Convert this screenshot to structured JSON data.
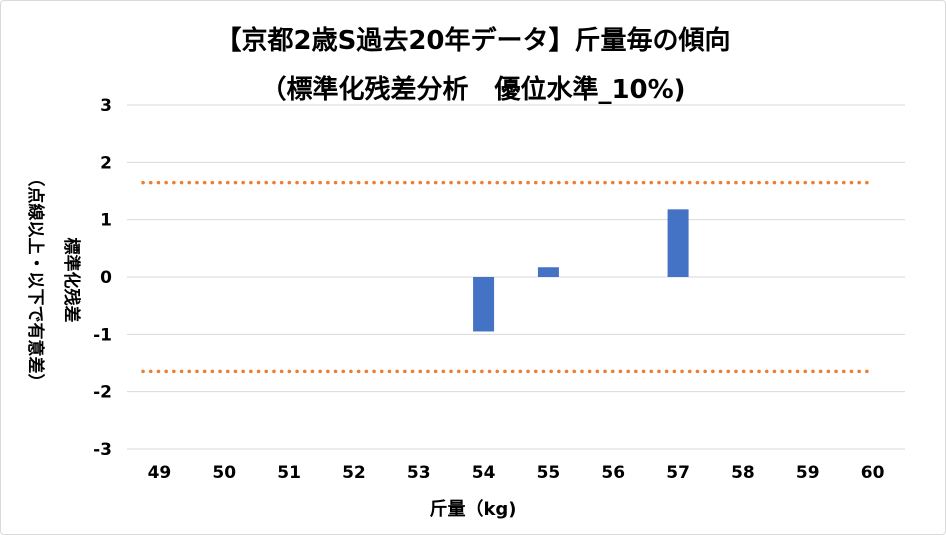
{
  "chart_data": {
    "type": "bar",
    "title": "【京都2歳S過去20年データ】斤量毎の傾向",
    "subtitle": "（標準化残差分析　優位水準_10%)",
    "xlabel": "斤量（kg)",
    "ylabel_line1": "標準化残差",
    "ylabel_line2": "（点線以上・以下で有意差）",
    "categories": [
      "49",
      "50",
      "51",
      "52",
      "53",
      "54",
      "55",
      "56",
      "57",
      "58",
      "59",
      "60"
    ],
    "values": [
      null,
      null,
      null,
      null,
      null,
      -0.95,
      0.17,
      null,
      1.18,
      null,
      null,
      null
    ],
    "ylim": [
      -3,
      3
    ],
    "yticks": [
      3,
      2,
      1,
      0,
      -1,
      -2,
      -3
    ],
    "threshold_lines": [
      1.645,
      -1.645
    ],
    "grid": true,
    "legend": "none",
    "colors": {
      "bar": "#4472c4",
      "threshold": "#ed7d31",
      "grid": "#d9d9d9"
    }
  }
}
